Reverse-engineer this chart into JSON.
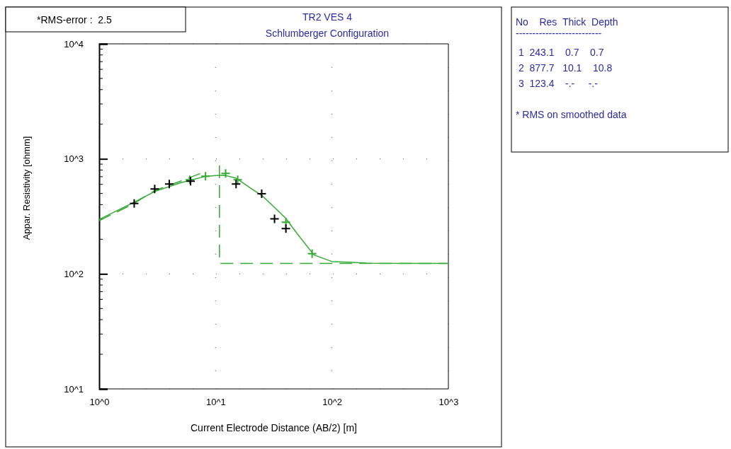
{
  "chart_data": {
    "type": "line",
    "title": "TR2 VES 4",
    "subtitle": "Schlumberger Configuration",
    "xlabel": "Current Electrode Distance (AB/2) [m]",
    "ylabel": "Appar. Resistivity [ohmm]",
    "log": "xy",
    "grid": true,
    "xlim": [
      1,
      1000
    ],
    "ylim": [
      10,
      10000
    ],
    "xticks": [
      {
        "value": 1,
        "label": "10^0"
      },
      {
        "value": 10,
        "label": "10^1"
      },
      {
        "value": 100,
        "label": "10^2"
      },
      {
        "value": 1000,
        "label": "10^3"
      }
    ],
    "yticks": [
      {
        "value": 10,
        "label": "10^1"
      },
      {
        "value": 100,
        "label": "10^2"
      },
      {
        "value": 1000,
        "label": "10^3"
      },
      {
        "value": 10000,
        "label": "10^4"
      }
    ],
    "series": [
      {
        "type": "line",
        "color": "#33aa33",
        "line_style": "solid",
        "x": [
          1,
          2,
          3,
          5,
          8,
          10,
          12,
          15,
          20,
          25,
          30,
          40,
          50,
          70,
          100,
          150,
          200,
          1000
        ],
        "values": [
          297,
          420,
          520,
          620,
          700,
          715,
          720,
          680,
          556,
          480,
          404,
          305,
          225,
          146,
          128,
          126,
          124,
          123.4
        ]
      },
      {
        "type": "line",
        "color": "#33aa33",
        "line_style": "dashed",
        "x": [
          1,
          2,
          3,
          5,
          8
        ],
        "values": [
          290,
          410,
          530,
          640,
          770
        ]
      },
      {
        "type": "line",
        "color": "#33aa33",
        "line_style": "dashed",
        "x": [
          10.8,
          10.8,
          1000
        ],
        "values": [
          877.7,
          123.4,
          123.4
        ]
      },
      {
        "type": "scatter",
        "color": "#33aa33",
        "marker": "cross",
        "x": [
          6,
          8.2,
          12.2,
          15.5,
          40.2,
          67.5
        ],
        "values": [
          658,
          705,
          746,
          658,
          281,
          150
        ]
      },
      {
        "type": "scatter",
        "color": "#000000",
        "marker": "cross",
        "x": [
          2,
          3,
          4,
          6.1,
          15,
          24.9,
          32.1,
          40.2
        ],
        "values": [
          409,
          548,
          605,
          640,
          605,
          498,
          301,
          248
        ]
      }
    ],
    "annotations": [
      "*RMS-error :  2.5",
      "No    Res  Thick  Depth",
      "--------------------------",
      " 1  243.1    0.7    0.7",
      " 2  877.7   10.1    10.8",
      " 3  123.4    -.-     -.-",
      "* RMS on smoothed data"
    ]
  }
}
